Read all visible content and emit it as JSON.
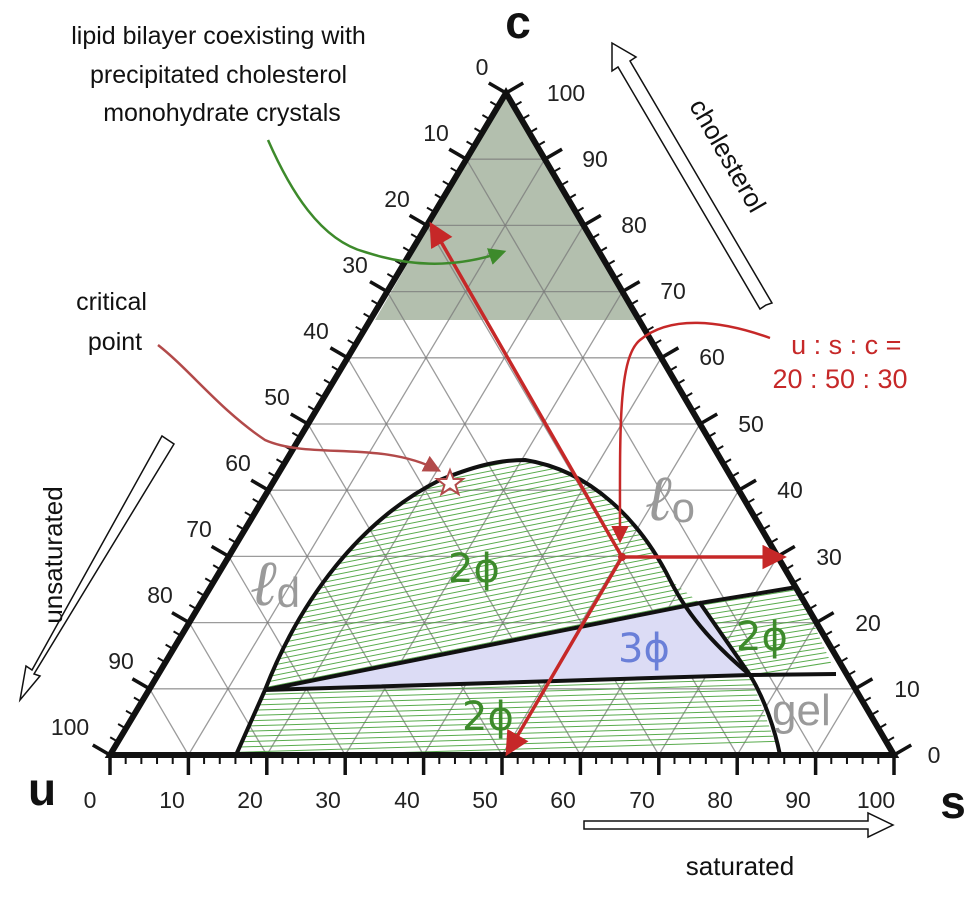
{
  "vertices": {
    "u": "u",
    "s": "s",
    "c": "c"
  },
  "axis_names": {
    "cholesterol": "cholesterol",
    "unsaturated": "unsaturated",
    "saturated": "saturated"
  },
  "ticks": {
    "bottom": [
      "0",
      "10",
      "20",
      "30",
      "40",
      "50",
      "60",
      "70",
      "80",
      "90",
      "100"
    ],
    "left": [
      "0",
      "10",
      "20",
      "30",
      "40",
      "50",
      "60",
      "70",
      "80",
      "90",
      "100"
    ],
    "right": [
      "0",
      "10",
      "20",
      "30",
      "40",
      "50",
      "60",
      "70",
      "80",
      "90",
      "100"
    ]
  },
  "annotations": {
    "precipitate_line1": "lipid bilayer coexisting with",
    "precipitate_line2": "precipitated cholesterol",
    "precipitate_line3": "monohydrate crystals",
    "critical_line1": "critical",
    "critical_line2": "point",
    "ratio_line1": "u : s : c =",
    "ratio_line2": "20 : 50 : 30"
  },
  "regions": {
    "ld_main": "ℓ",
    "ld_sub": "d",
    "lo_main": "ℓ",
    "lo_sub": "o",
    "gel": "gel",
    "two_phase_upper": "2ϕ",
    "two_phase_right": "2ϕ",
    "two_phase_lower": "2ϕ",
    "three_phase": "3ϕ"
  },
  "example_composition": {
    "u": 20,
    "s": 50,
    "c": 30
  },
  "colors": {
    "accent_red": "#c62828",
    "annotation_green": "#3d8a2b",
    "tieline_green": "#47a23a",
    "precipitate_fill": "#b3bfae",
    "three_phase_fill": "#dcdcf5",
    "three_phase_text": "#6a7fd8",
    "region_gray": "#9a9a9a"
  }
}
